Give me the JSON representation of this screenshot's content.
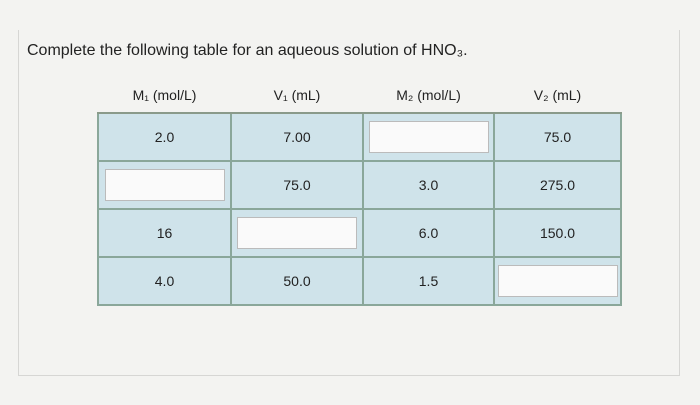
{
  "title": "Complete the following table for an aqueous solution of HNO₃.",
  "table": {
    "header": [
      "M₁ (mol/L)",
      "V₁ (mL)",
      "M₂ (mol/L)",
      "V₂ (mL)"
    ],
    "rows": [
      [
        "2.0",
        "7.00",
        null,
        "75.0"
      ],
      [
        null,
        "75.0",
        "3.0",
        "275.0"
      ],
      [
        "16",
        null,
        "6.0",
        "150.0"
      ],
      [
        "4.0",
        "50.0",
        "1.5",
        null
      ]
    ]
  }
}
